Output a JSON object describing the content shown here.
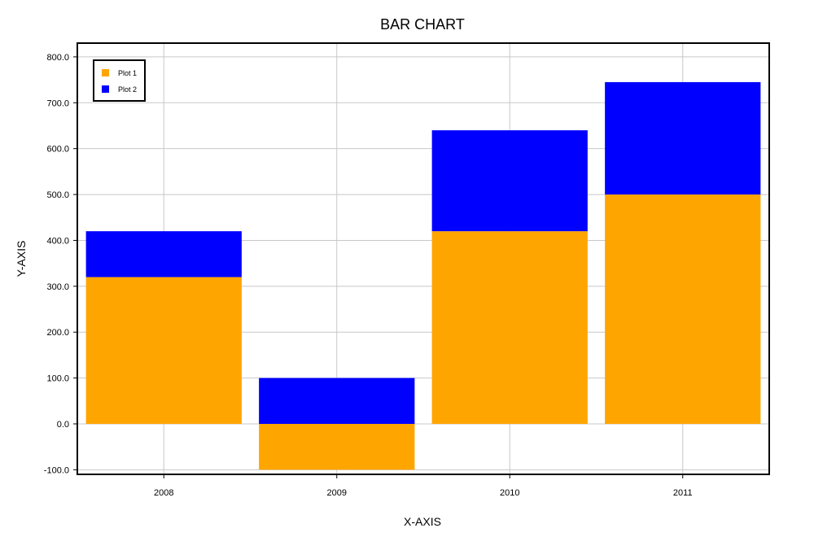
{
  "chart_data": {
    "type": "bar",
    "stacked": true,
    "title": "BAR CHART",
    "xlabel": "X-AXIS",
    "ylabel": "Y-AXIS",
    "categories": [
      "2008",
      "2009",
      "2010",
      "2011"
    ],
    "series": [
      {
        "name": "Plot 1",
        "values": [
          320,
          -100,
          420,
          500
        ],
        "color": "#FFA500"
      },
      {
        "name": "Plot 2",
        "values": [
          100,
          100,
          220,
          245
        ],
        "color": "#0000FF"
      }
    ],
    "ylim": [
      -110,
      830
    ],
    "yticks": [
      -100,
      0,
      100,
      200,
      300,
      400,
      500,
      600,
      700,
      800
    ],
    "ytick_labels": [
      "-100.0",
      "0.0",
      "100.0",
      "200.0",
      "300.0",
      "400.0",
      "500.0",
      "600.0",
      "700.0",
      "800.0"
    ],
    "grid": true,
    "legend_position": "top-left"
  }
}
